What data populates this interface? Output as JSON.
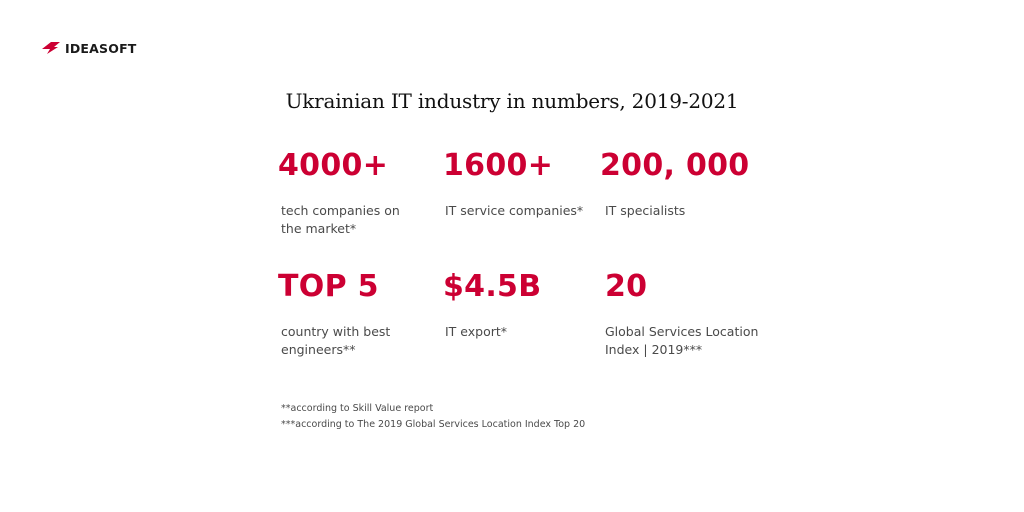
{
  "brand": {
    "name": "IDEASOFT",
    "accent_color": "#cc0033"
  },
  "title": "Ukrainian IT industry in numbers, 2019-2021",
  "stats": [
    {
      "value": "4000+",
      "label": "tech companies on the market*"
    },
    {
      "value": "1600+",
      "label": "IT service companies*"
    },
    {
      "value": "200, 000",
      "label": "IT specialists"
    },
    {
      "value": "TOP 5",
      "label": "country with best engineers**"
    },
    {
      "value": "$4.5B",
      "label": "IT export*"
    },
    {
      "value": "20",
      "label": "Global Services Location Index | 2019***"
    }
  ],
  "footnotes": [
    "**according to Skill Value report",
    "***according to The 2019 Global Services Location Index Top 20"
  ]
}
